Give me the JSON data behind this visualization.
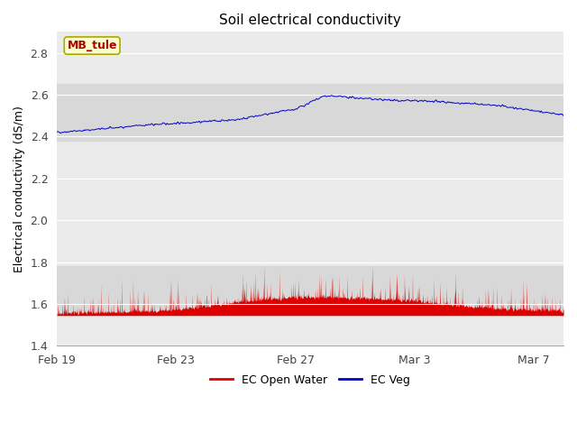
{
  "title": "Soil electrical conductivity",
  "ylabel": "Electrical conductivity (dS/m)",
  "ylim": [
    1.4,
    2.9
  ],
  "yticks": [
    1.4,
    1.6,
    1.8,
    2.0,
    2.2,
    2.4,
    2.6,
    2.8
  ],
  "xlim_days": [
    0,
    17
  ],
  "xtick_labels": [
    "Feb 19",
    "Feb 23",
    "Feb 27",
    "Mar 3",
    "Mar 7"
  ],
  "xtick_positions": [
    0,
    4,
    8,
    12,
    16
  ],
  "figure_bg_color": "#ffffff",
  "plot_bg_color": "#ebebeb",
  "band_color": "#d8d8d8",
  "blue_band_ymin": 2.38,
  "blue_band_ymax": 2.65,
  "red_band_ymin": 1.545,
  "red_band_ymax": 1.78,
  "blue_line_color": "#0000cc",
  "red_fill_color": "#dd0000",
  "red_baseline": 1.545,
  "legend_labels": [
    "EC Open Water",
    "EC Veg"
  ],
  "legend_colors": [
    "#dd0000",
    "#0000cc"
  ],
  "annotation_text": "MB_tule",
  "annotation_bg": "#ffffcc",
  "annotation_border": "#aaaa00",
  "n_points": 2000,
  "seed": 42,
  "grid_color": "#ffffff",
  "grid_linewidth": 0.8,
  "title_fontsize": 11,
  "label_fontsize": 9,
  "tick_fontsize": 9
}
